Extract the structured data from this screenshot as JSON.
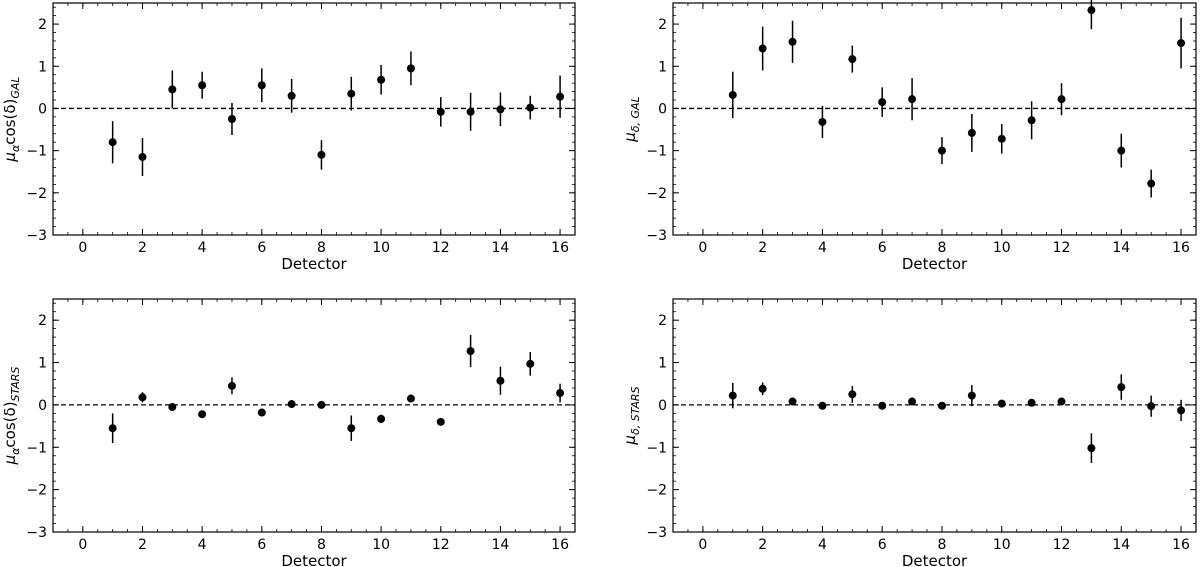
{
  "chart_data": [
    {
      "type": "scatter",
      "title": "",
      "xlabel": "Detector",
      "ylabel": {
        "base": "μ",
        "sub1": "α",
        "mid": "cos(δ)",
        "sub2": "GAL"
      },
      "xlim": [
        -1,
        16.5
      ],
      "ylim": [
        -3,
        2.5
      ],
      "xticks": [
        0,
        2,
        4,
        6,
        8,
        10,
        12,
        14,
        16
      ],
      "yticks": [
        -3,
        -2,
        -1,
        0,
        1,
        2
      ],
      "reference_line": 0,
      "grid": false,
      "series": [
        {
          "x": [
            1,
            2,
            3,
            4,
            5,
            6,
            7,
            8,
            9,
            10,
            11,
            12,
            13,
            14,
            15,
            16
          ],
          "y": [
            -0.8,
            -1.15,
            0.45,
            0.55,
            -0.25,
            0.55,
            0.3,
            -1.1,
            0.35,
            0.68,
            0.95,
            -0.08,
            -0.08,
            -0.02,
            0.02,
            0.28
          ],
          "err": [
            0.5,
            0.45,
            0.45,
            0.32,
            0.38,
            0.4,
            0.4,
            0.35,
            0.4,
            0.35,
            0.4,
            0.35,
            0.45,
            0.4,
            0.28,
            0.5
          ]
        }
      ]
    },
    {
      "type": "scatter",
      "title": "",
      "xlabel": "Detector",
      "ylabel": {
        "base": "μ",
        "sub1": "δ, GAL",
        "mid": "",
        "sub2": ""
      },
      "xlim": [
        -1,
        16.5
      ],
      "ylim": [
        -3,
        2.5
      ],
      "xticks": [
        0,
        2,
        4,
        6,
        8,
        10,
        12,
        14,
        16
      ],
      "yticks": [
        -3,
        -2,
        -1,
        0,
        1,
        2
      ],
      "reference_line": 0,
      "grid": false,
      "series": [
        {
          "x": [
            1,
            2,
            3,
            4,
            5,
            6,
            7,
            8,
            9,
            10,
            11,
            12,
            13,
            14,
            15,
            16
          ],
          "y": [
            0.32,
            1.42,
            1.58,
            -0.32,
            1.17,
            0.15,
            0.22,
            -1.0,
            -0.58,
            -0.72,
            -0.28,
            0.22,
            2.33,
            -1.0,
            -1.78,
            1.55
          ],
          "err": [
            0.55,
            0.52,
            0.5,
            0.38,
            0.32,
            0.35,
            0.5,
            0.32,
            0.45,
            0.35,
            0.45,
            0.38,
            0.45,
            0.4,
            0.33,
            0.6
          ]
        }
      ]
    },
    {
      "type": "scatter",
      "title": "",
      "xlabel": "Detector",
      "ylabel": {
        "base": "μ",
        "sub1": "α",
        "mid": "cos(δ)",
        "sub2": "STARS"
      },
      "xlim": [
        -1,
        16.5
      ],
      "ylim": [
        -3,
        2.5
      ],
      "xticks": [
        0,
        2,
        4,
        6,
        8,
        10,
        12,
        14,
        16
      ],
      "yticks": [
        -3,
        -2,
        -1,
        0,
        1,
        2
      ],
      "reference_line": 0,
      "grid": false,
      "series": [
        {
          "x": [
            1,
            2,
            3,
            4,
            5,
            6,
            7,
            8,
            9,
            10,
            11,
            12,
            13,
            14,
            15,
            16
          ],
          "y": [
            -0.55,
            0.18,
            -0.05,
            -0.22,
            0.45,
            -0.18,
            0.02,
            0.0,
            -0.55,
            -0.33,
            0.15,
            -0.4,
            1.27,
            0.57,
            0.97,
            0.28
          ],
          "err": [
            0.35,
            0.12,
            0.05,
            0.06,
            0.2,
            0.06,
            0.05,
            0.05,
            0.3,
            0.1,
            0.06,
            0.06,
            0.38,
            0.33,
            0.28,
            0.22
          ]
        }
      ]
    },
    {
      "type": "scatter",
      "title": "",
      "xlabel": "Detector",
      "ylabel": {
        "base": "μ",
        "sub1": "δ, STARS",
        "mid": "",
        "sub2": ""
      },
      "xlim": [
        -1,
        16.5
      ],
      "ylim": [
        -3,
        2.5
      ],
      "xticks": [
        0,
        2,
        4,
        6,
        8,
        10,
        12,
        14,
        16
      ],
      "yticks": [
        -3,
        -2,
        -1,
        0,
        1,
        2
      ],
      "reference_line": 0,
      "grid": false,
      "series": [
        {
          "x": [
            1,
            2,
            3,
            4,
            5,
            6,
            7,
            8,
            9,
            10,
            11,
            12,
            13,
            14,
            15,
            16
          ],
          "y": [
            0.22,
            0.38,
            0.08,
            -0.02,
            0.25,
            -0.02,
            0.08,
            -0.02,
            0.22,
            0.03,
            0.05,
            0.08,
            -1.02,
            0.42,
            -0.03,
            -0.13
          ],
          "err": [
            0.3,
            0.15,
            0.05,
            0.05,
            0.2,
            0.05,
            0.05,
            0.05,
            0.25,
            0.08,
            0.05,
            0.07,
            0.35,
            0.3,
            0.25,
            0.25
          ]
        }
      ]
    }
  ]
}
